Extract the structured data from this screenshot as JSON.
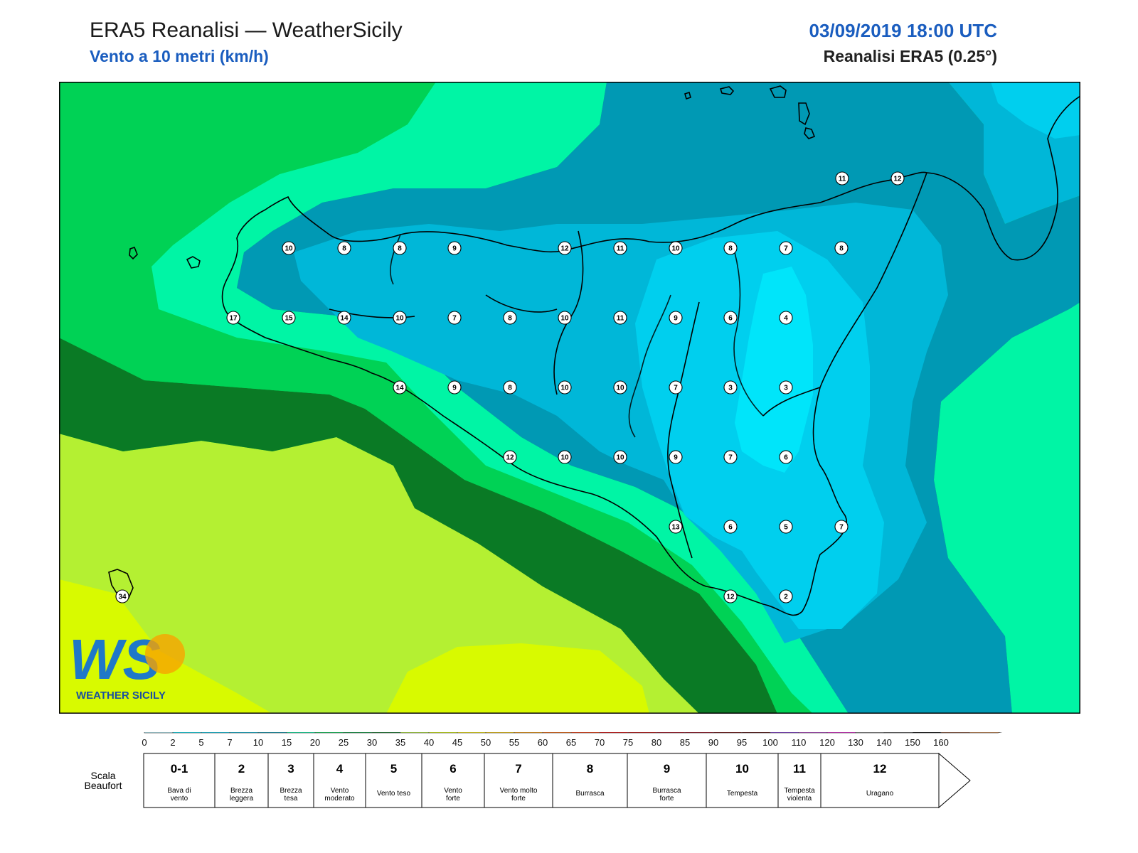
{
  "header": {
    "title": "ERA5 Reanalisi — WeatherSicily",
    "subtitle": "Vento a 10 metri (km/h)",
    "datetime": "03/09/2019 18:00 UTC",
    "source": "Reanalisi ERA5 (0.25°)"
  },
  "logo": {
    "letters": "WS",
    "text": "WEATHER SICILY"
  },
  "station_values": [
    {
      "v": "11"
    },
    {
      "v": "12"
    },
    {
      "v": "10"
    },
    {
      "v": "8"
    },
    {
      "v": "8"
    },
    {
      "v": "9"
    },
    {
      "v": "12"
    },
    {
      "v": "11"
    },
    {
      "v": "10"
    },
    {
      "v": "8"
    },
    {
      "v": "7"
    },
    {
      "v": "8"
    },
    {
      "v": "17"
    },
    {
      "v": "15"
    },
    {
      "v": "14"
    },
    {
      "v": "10"
    },
    {
      "v": "7"
    },
    {
      "v": "8"
    },
    {
      "v": "10"
    },
    {
      "v": "11"
    },
    {
      "v": "9"
    },
    {
      "v": "6"
    },
    {
      "v": "4"
    },
    {
      "v": "14"
    },
    {
      "v": "9"
    },
    {
      "v": "8"
    },
    {
      "v": "10"
    },
    {
      "v": "10"
    },
    {
      "v": "7"
    },
    {
      "v": "3"
    },
    {
      "v": "3"
    },
    {
      "v": "12"
    },
    {
      "v": "10"
    },
    {
      "v": "10"
    },
    {
      "v": "9"
    },
    {
      "v": "7"
    },
    {
      "v": "6"
    },
    {
      "v": "13"
    },
    {
      "v": "6"
    },
    {
      "v": "5"
    },
    {
      "v": "7"
    },
    {
      "v": "12"
    },
    {
      "v": "2"
    },
    {
      "v": "34"
    }
  ],
  "colorbar": {
    "ticks": [
      "0",
      "2",
      "5",
      "7",
      "10",
      "15",
      "20",
      "25",
      "30",
      "35",
      "40",
      "45",
      "50",
      "55",
      "60",
      "65",
      "70",
      "75",
      "80",
      "85",
      "90",
      "95",
      "100",
      "110",
      "120",
      "130",
      "140",
      "150",
      "160"
    ],
    "colors": [
      "#b4f0fa",
      "#00e5fa",
      "#00cfee",
      "#00b7d8",
      "#0099b4",
      "#00f5a5",
      "#00d255",
      "#00a03c",
      "#0a7a25",
      "#b4f032",
      "#d8fa00",
      "#fff000",
      "#ffcd00",
      "#ff9b00",
      "#ff6400",
      "#ff3200",
      "#e60000",
      "#c80000",
      "#aa0014",
      "#960014",
      "#6e0000",
      "#500000",
      "#7d30d2",
      "#b43cc8",
      "#e61ed2",
      "#808080",
      "#5a5a5a",
      "#000000",
      "#8c5032",
      "#c8824b"
    ]
  },
  "beaufort": {
    "label_line1": "Scala",
    "label_line2": "Beaufort",
    "cells": [
      {
        "num": "0-1",
        "l1": "Bava di",
        "l2": "vento"
      },
      {
        "num": "2",
        "l1": "Brezza",
        "l2": "leggera"
      },
      {
        "num": "3",
        "l1": "Brezza",
        "l2": "tesa"
      },
      {
        "num": "4",
        "l1": "Vento",
        "l2": "moderato"
      },
      {
        "num": "5",
        "l1": "Vento teso",
        "l2": ""
      },
      {
        "num": "6",
        "l1": "Vento",
        "l2": "forte"
      },
      {
        "num": "7",
        "l1": "Vento molto",
        "l2": "forte"
      },
      {
        "num": "8",
        "l1": "Burrasca",
        "l2": ""
      },
      {
        "num": "9",
        "l1": "Burrasca",
        "l2": "forte"
      },
      {
        "num": "10",
        "l1": "Tempesta",
        "l2": ""
      },
      {
        "num": "11",
        "l1": "Tempesta",
        "l2": "violenta"
      },
      {
        "num": "12",
        "l1": "Uragano",
        "l2": ""
      }
    ]
  }
}
